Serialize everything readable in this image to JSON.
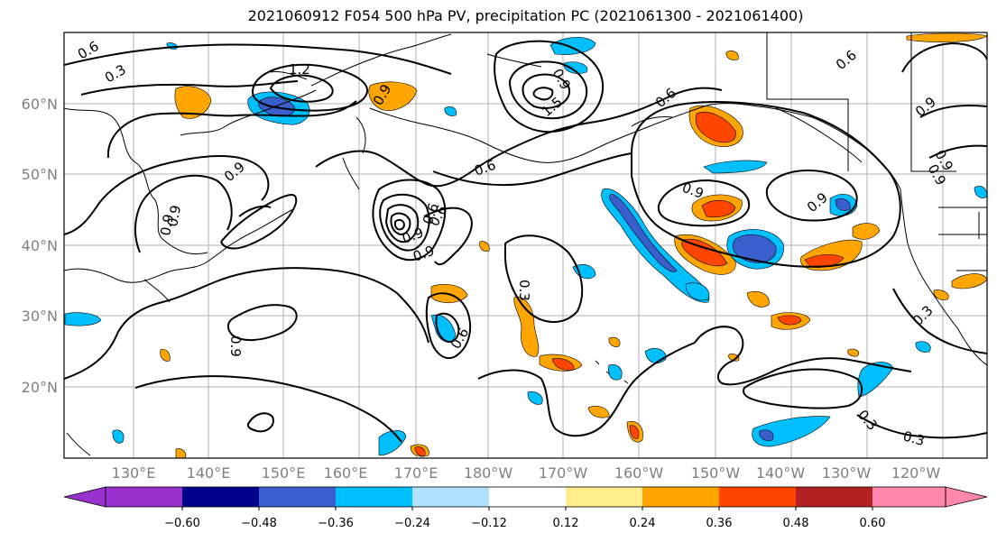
{
  "title": "2021060912 F054 500 hPa PV, precipitation PC (2021061300 - 2021061400)",
  "lat_labels": [
    "60°N",
    "50°N",
    "40°N",
    "30°N",
    "20°N"
  ],
  "lon_labels": [
    "130°E",
    "140°E",
    "150°E",
    "160°E",
    "170°E",
    "180°W",
    "170°W",
    "160°W",
    "150°W",
    "140°W",
    "130°W",
    "120°W"
  ],
  "pv_contour_labels": [
    "0.6",
    "0.3",
    "1.2",
    "0.9",
    "1.5",
    "0.6",
    "0.9",
    "0.6",
    "0.9",
    "0.9",
    "0.9",
    "0.3",
    "0.9",
    "0.6",
    "0.9",
    "0.9",
    "0.6",
    "0.9",
    "0.9",
    "0.3",
    "0.9",
    "0.3",
    "0.3",
    "0.9",
    "0.6",
    "0.6",
    "0.9"
  ],
  "colorbar": {
    "ticks": [
      "−0.60",
      "−0.48",
      "−0.36",
      "−0.24",
      "−0.12",
      "0.12",
      "0.24",
      "0.36",
      "0.48",
      "0.60"
    ],
    "colors": {
      "under": "#9932CC",
      "bins": [
        "#00008B",
        "#3A5FCD",
        "#00BFFF",
        "#B0E2FF",
        "#FFFFFF",
        "#FFEC8B",
        "#FFA500",
        "#FF4500",
        "#B22222"
      ],
      "over": "#FF88AA"
    }
  }
}
